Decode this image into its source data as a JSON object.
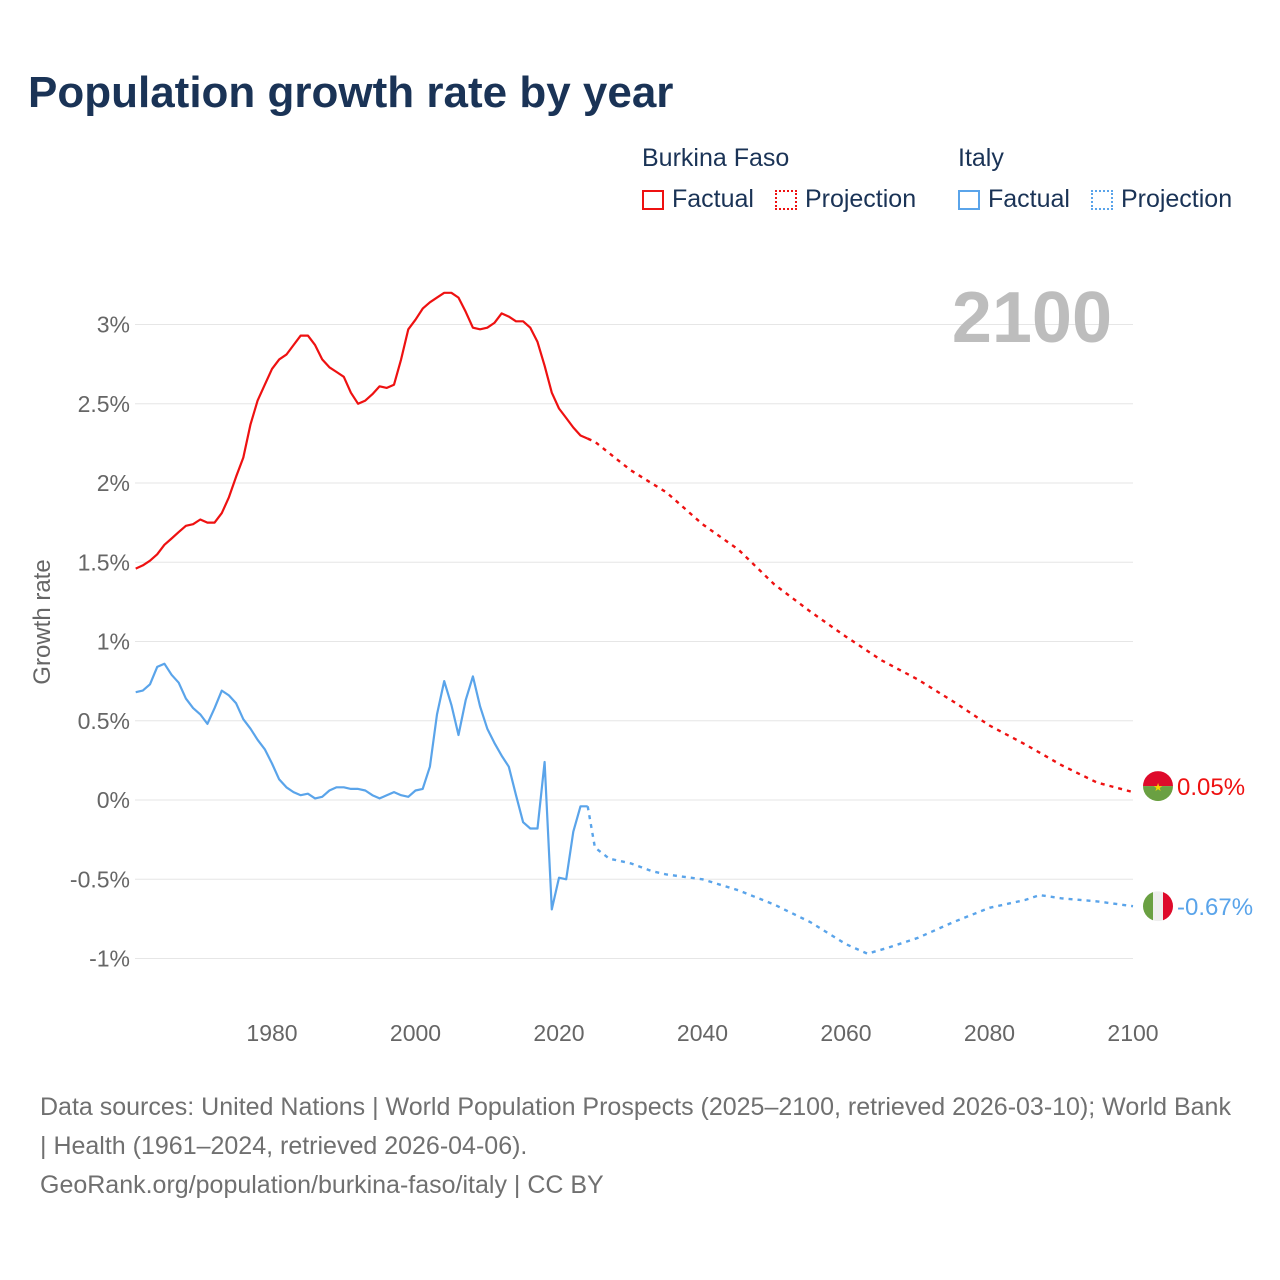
{
  "title": "Population growth rate by year",
  "legend": {
    "groups": [
      {
        "name": "Burkina Faso",
        "factual": "Factual",
        "projection": "Projection",
        "color": "#ee1111"
      },
      {
        "name": "Italy",
        "factual": "Factual",
        "projection": "Projection",
        "color": "#5aa4ea"
      }
    ]
  },
  "footer": {
    "sources": "Data sources: United Nations | World Population Prospects (2025–2100, retrieved 2026-03-10); World Bank | Health (1961–2024, retrieved 2026-04-06).",
    "link": "GeoRank.org/population/burkina-faso/italy | CC BY"
  },
  "chart_data": {
    "type": "line",
    "title": "Population growth rate by year",
    "ylabel": "Growth rate",
    "xlabel": "",
    "year_label": "2100",
    "xlim": [
      1961,
      2100
    ],
    "ylim": [
      -1.1,
      3.3
    ],
    "x_ticks": [
      "1980",
      "2000",
      "2020",
      "2040",
      "2060",
      "2080",
      "2100"
    ],
    "y_ticks": [
      {
        "v": 3,
        "label": "3%"
      },
      {
        "v": 2.5,
        "label": "2.5%"
      },
      {
        "v": 2,
        "label": "2%"
      },
      {
        "v": 1.5,
        "label": "1.5%"
      },
      {
        "v": 1,
        "label": "1%"
      },
      {
        "v": 0.5,
        "label": "0.5%"
      },
      {
        "v": 0,
        "label": "0%"
      },
      {
        "v": -0.5,
        "label": "-0.5%"
      },
      {
        "v": -1,
        "label": "-1%"
      }
    ],
    "grid": true,
    "series": [
      {
        "name": "Burkina Faso",
        "color": "#ee1111",
        "end_label": "0.05%",
        "factual": {
          "x": [
            1961,
            1962,
            1963,
            1964,
            1965,
            1966,
            1967,
            1968,
            1969,
            1970,
            1971,
            1972,
            1973,
            1974,
            1975,
            1976,
            1977,
            1978,
            1979,
            1980,
            1981,
            1982,
            1983,
            1984,
            1985,
            1986,
            1987,
            1988,
            1989,
            1990,
            1991,
            1992,
            1993,
            1994,
            1995,
            1996,
            1997,
            1998,
            1999,
            2000,
            2001,
            2002,
            2003,
            2004,
            2005,
            2006,
            2007,
            2008,
            2009,
            2010,
            2011,
            2012,
            2013,
            2014,
            2015,
            2016,
            2017,
            2018,
            2019,
            2020,
            2021,
            2022,
            2023,
            2024
          ],
          "y": [
            1.46,
            1.48,
            1.51,
            1.55,
            1.61,
            1.65,
            1.69,
            1.73,
            1.74,
            1.77,
            1.75,
            1.75,
            1.81,
            1.91,
            2.04,
            2.16,
            2.37,
            2.52,
            2.62,
            2.72,
            2.78,
            2.81,
            2.87,
            2.93,
            2.93,
            2.87,
            2.78,
            2.73,
            2.7,
            2.67,
            2.57,
            2.5,
            2.52,
            2.56,
            2.61,
            2.6,
            2.62,
            2.78,
            2.97,
            3.03,
            3.1,
            3.14,
            3.17,
            3.2,
            3.2,
            3.17,
            3.08,
            2.98,
            2.97,
            2.98,
            3.01,
            3.07,
            3.05,
            3.02,
            3.02,
            2.98,
            2.89,
            2.74,
            2.57,
            2.47,
            2.41,
            2.35,
            2.3,
            2.28
          ]
        },
        "projection": {
          "x": [
            2024,
            2025,
            2030,
            2035,
            2040,
            2045,
            2050,
            2055,
            2060,
            2065,
            2070,
            2075,
            2080,
            2085,
            2090,
            2095,
            2100
          ],
          "y": [
            2.28,
            2.26,
            2.08,
            1.94,
            1.74,
            1.58,
            1.36,
            1.19,
            1.03,
            0.88,
            0.76,
            0.62,
            0.47,
            0.35,
            0.22,
            0.11,
            0.05
          ]
        }
      },
      {
        "name": "Italy",
        "color": "#5aa4ea",
        "end_label": "-0.67%",
        "factual": {
          "x": [
            1961,
            1962,
            1963,
            1964,
            1965,
            1966,
            1967,
            1968,
            1969,
            1970,
            1971,
            1972,
            1973,
            1974,
            1975,
            1976,
            1977,
            1978,
            1979,
            1980,
            1981,
            1982,
            1983,
            1984,
            1985,
            1986,
            1987,
            1988,
            1989,
            1990,
            1991,
            1992,
            1993,
            1994,
            1995,
            1996,
            1997,
            1998,
            1999,
            2000,
            2001,
            2002,
            2003,
            2004,
            2005,
            2006,
            2007,
            2008,
            2009,
            2010,
            2011,
            2012,
            2013,
            2014,
            2015,
            2016,
            2017,
            2018,
            2019,
            2020,
            2021,
            2022,
            2023,
            2024
          ],
          "y": [
            0.68,
            0.69,
            0.73,
            0.84,
            0.86,
            0.79,
            0.74,
            0.64,
            0.58,
            0.54,
            0.48,
            0.58,
            0.69,
            0.66,
            0.61,
            0.51,
            0.45,
            0.38,
            0.32,
            0.23,
            0.13,
            0.08,
            0.05,
            0.03,
            0.04,
            0.01,
            0.02,
            0.06,
            0.08,
            0.08,
            0.07,
            0.07,
            0.06,
            0.03,
            0.01,
            0.03,
            0.05,
            0.03,
            0.02,
            0.06,
            0.07,
            0.21,
            0.54,
            0.75,
            0.6,
            0.41,
            0.63,
            0.78,
            0.59,
            0.45,
            0.36,
            0.28,
            0.21,
            0.03,
            -0.14,
            -0.18,
            -0.18,
            0.24,
            -0.69,
            -0.49,
            -0.5,
            -0.2,
            -0.04,
            -0.04
          ]
        },
        "projection": {
          "x": [
            2024,
            2025,
            2027,
            2030,
            2033,
            2035,
            2040,
            2045,
            2050,
            2055,
            2060,
            2063,
            2066,
            2070,
            2075,
            2080,
            2085,
            2087,
            2090,
            2095,
            2100
          ],
          "y": [
            -0.04,
            -0.3,
            -0.37,
            -0.4,
            -0.45,
            -0.47,
            -0.5,
            -0.57,
            -0.66,
            -0.77,
            -0.91,
            -0.97,
            -0.93,
            -0.87,
            -0.77,
            -0.68,
            -0.63,
            -0.6,
            -0.62,
            -0.64,
            -0.67
          ]
        }
      }
    ]
  }
}
